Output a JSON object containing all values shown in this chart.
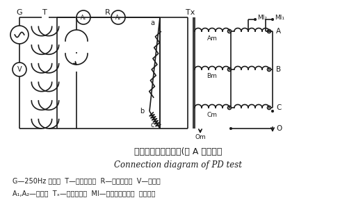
{
  "bg_color": "#ffffff",
  "line_color": "#1a1a1a",
  "title_cn": "局部放电试验接线图(以 A 相为例）",
  "title_en": "Connection diagram of PD test",
  "legend_line1": "G—250Hz 发电机  T—试验变压器  R—补偿电抗器  V—电压表",
  "legend_line2": "A₁,A₂—电流表  Tₓ—被试变压器  MI—局部放电检测仪  工程技术",
  "label_G": "G",
  "label_T": "T",
  "label_R": "R",
  "label_Tx": "Tx",
  "label_MI2": "MI₂",
  "label_MI1": "MI₁",
  "label_Am": "Am",
  "label_Bm": "Bm",
  "label_Cm": "Cm",
  "label_Om": "Om",
  "label_A": "A",
  "label_B": "B",
  "label_C": "C",
  "label_O": "O",
  "label_a": "a",
  "label_b": "b",
  "label_c": "c",
  "label_A1": "A₁",
  "label_A2": "A₂",
  "label_V": "V"
}
